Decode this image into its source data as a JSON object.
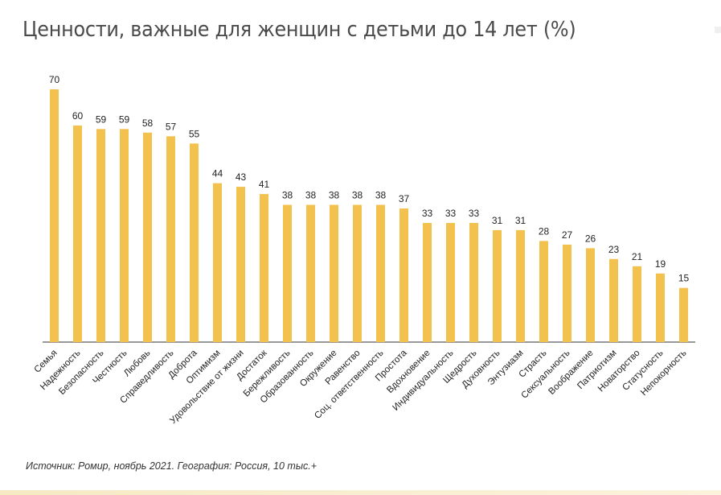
{
  "title": "Ценности, важные для женщин с детьми до 14 лет (%)",
  "source": "Источник: Ромир, ноябрь 2021. География: Россия, 10 тыс.+",
  "colors": {
    "bar": "#F2C14E",
    "axis": "#333333",
    "text": "#222222"
  },
  "chart_data": {
    "type": "bar",
    "title": "Ценности, важные для женщин с детьми до 14 лет (%)",
    "categories": [
      "Семья",
      "Надежность",
      "Безопасность",
      "Честность",
      "Любовь",
      "Справедливость",
      "Доброта",
      "Оптимизм",
      "Удовольствие от жизни",
      "Достаток",
      "Бережливость",
      "Образованность",
      "Окружение",
      "Равенство",
      "Соц. ответственность",
      "Простота",
      "Вдохновение",
      "Индивидуальность",
      "Щедрость",
      "Духовность",
      "Энтузиазм",
      "Страсть",
      "Сексуальность",
      "Воображение",
      "Патриотизм",
      "Новаторство",
      "Статусность",
      "Непокорность"
    ],
    "values": [
      70,
      60,
      59,
      59,
      58,
      57,
      55,
      44,
      43,
      41,
      38,
      38,
      38,
      38,
      38,
      37,
      33,
      33,
      33,
      31,
      31,
      28,
      27,
      26,
      23,
      21,
      19,
      15
    ],
    "ylim": [
      0,
      70
    ],
    "grid": false,
    "legend": "none",
    "xlabel": "",
    "ylabel": ""
  }
}
